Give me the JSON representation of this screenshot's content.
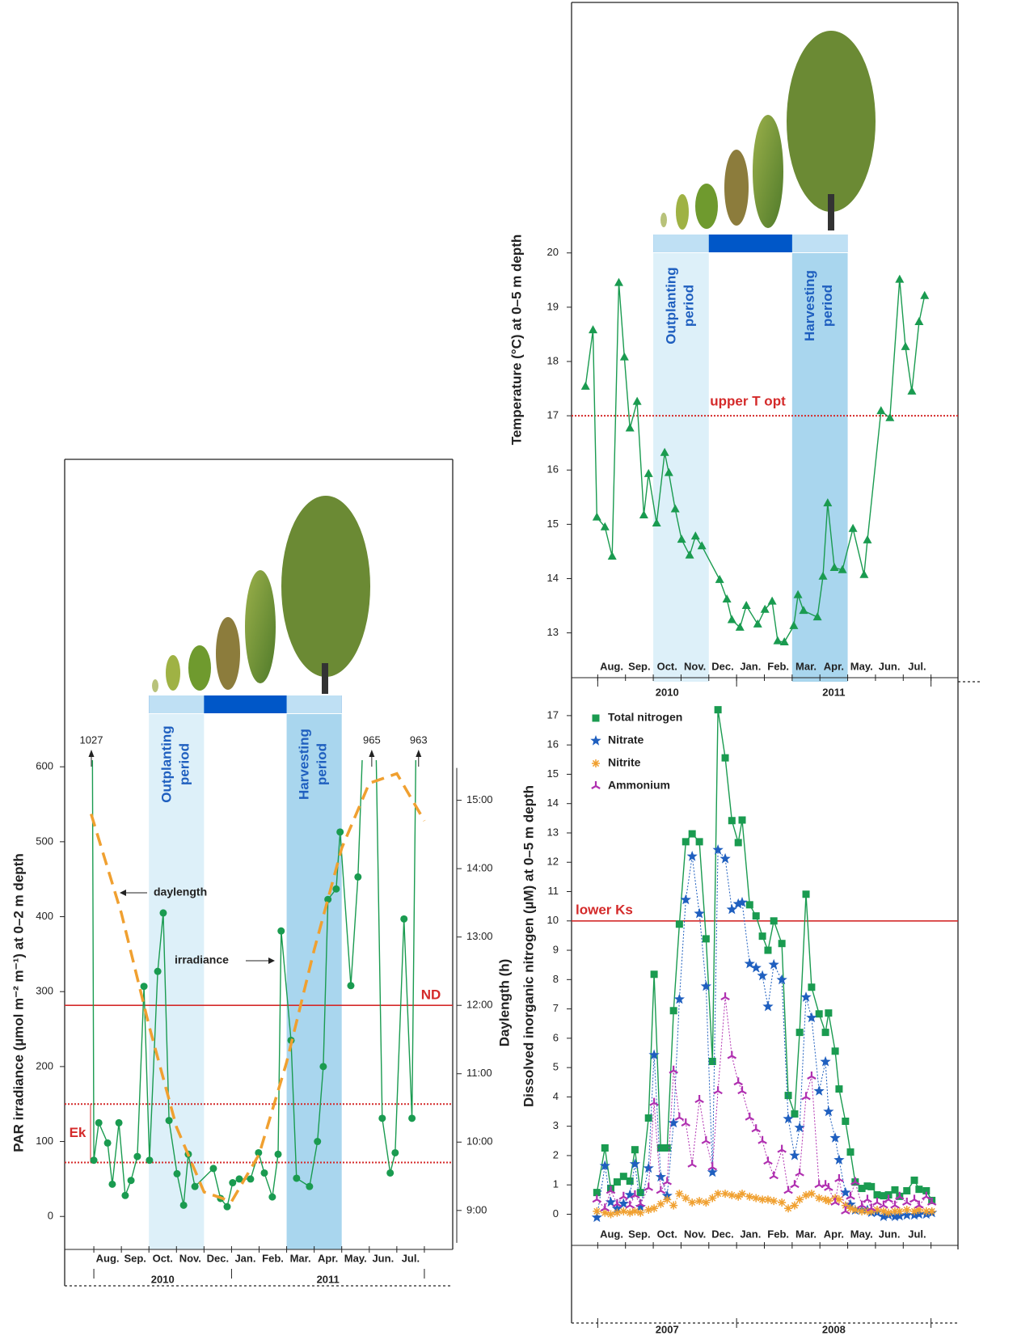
{
  "chart_data": [
    {
      "type": "line",
      "ylabel": "PAR irradiance (µmol m⁻² m⁻¹) at 0–2 m depth",
      "y2label": "Daylength (h)",
      "categories": [
        "Aug.",
        "Sep.",
        "Oct.",
        "Nov.",
        "Dec.",
        "Jan.",
        "Feb.",
        "Mar.",
        "Apr.",
        "May.",
        "Jun.",
        "Jul."
      ],
      "years": [
        "2010",
        "2011"
      ],
      "xlim": [
        -1,
        13
      ],
      "ylim": [
        -44,
        652
      ],
      "yticks": [
        0,
        100,
        200,
        300,
        400,
        500,
        600
      ],
      "y2lim": [
        8.43,
        16.06
      ],
      "y2ticks": [
        {
          "value": 9,
          "label": "9:00"
        },
        {
          "value": 10,
          "label": "10:00"
        },
        {
          "value": 11,
          "label": "11:00"
        },
        {
          "value": 12,
          "label": "12:00"
        },
        {
          "value": 13,
          "label": "13:00"
        },
        {
          "value": 14,
          "label": "14:00"
        },
        {
          "value": 15,
          "label": "15:00"
        }
      ],
      "periods": [
        [
          "Outplanting",
          "period"
        ],
        [
          "Harvesting",
          "period"
        ]
      ],
      "reference_color": "#d42a2a",
      "reference_lines": [
        {
          "label": "ND",
          "axis": "y2",
          "values": [
            12
          ],
          "style": "solid"
        },
        {
          "label": "Ek",
          "values": [
            72,
            150
          ],
          "style": "dotted"
        }
      ],
      "series": [
        {
          "name": "irradiance",
          "color": "#1a9b50",
          "marker": "circle",
          "x": [
            -0.09,
            0,
            0.18,
            0.5,
            0.67,
            0.91,
            1.14,
            1.35,
            1.58,
            1.82,
            2.02,
            2.32,
            2.52,
            2.73,
            3.02,
            3.26,
            3.43,
            3.67,
            4.34,
            4.6,
            4.84,
            5.04,
            5.28,
            5.69,
            5.98,
            6.19,
            6.48,
            6.69,
            6.8,
            7.16,
            7.36,
            7.83,
            8.12,
            8.33,
            8.5,
            8.8,
            8.94,
            9.33,
            9.59,
            10.09,
            10.47,
            10.76,
            10.94,
            11.26,
            11.55,
            11.79
          ],
          "values": [
            1027,
            75,
            125,
            98,
            43,
            125,
            28,
            48,
            80,
            307,
            75,
            327,
            405,
            128,
            57,
            15,
            83,
            40,
            64,
            24,
            13,
            45,
            50,
            50,
            85,
            58,
            26,
            83,
            381,
            235,
            51,
            40,
            100,
            200,
            423,
            437,
            513,
            308,
            453,
            965,
            131,
            58,
            85,
            397,
            131,
            963
          ]
        },
        {
          "name": "daylength",
          "color": "#f0a030",
          "axis": "y2",
          "dashed": true,
          "x": [
            -0.1,
            1,
            2,
            3,
            4,
            5,
            6,
            7,
            8,
            9,
            10,
            11,
            12
          ],
          "values": [
            14.8,
            13.35,
            11.71,
            10.22,
            9.27,
            9.13,
            9.82,
            11.17,
            12.81,
            14.3,
            15.25,
            15.39,
            14.7
          ]
        }
      ]
    },
    {
      "type": "line",
      "ylabel": "Temperature (°C) at 0–5 m depth",
      "categories": [
        "Aug.",
        "Sep.",
        "Oct.",
        "Nov.",
        "Dec.",
        "Jan.",
        "Feb.",
        "Mar.",
        "Apr.",
        "May.",
        "Jun.",
        "Jul."
      ],
      "years": [
        "2010",
        "2011"
      ],
      "xlim": [
        -1,
        13
      ],
      "ylim": [
        12.1,
        20.19
      ],
      "yticks": [
        13,
        14,
        15,
        16,
        17,
        18,
        19,
        20
      ],
      "periods": [
        [
          "Outplanting",
          "period"
        ],
        [
          "Harvesting",
          "period"
        ]
      ],
      "reference_color": "#d42a2a",
      "reference_lines": [
        {
          "label": "upper T opt",
          "values": [
            17
          ],
          "style": "dotted"
        }
      ],
      "series": [
        {
          "color": "#1a9b50",
          "marker": "triangle",
          "x": [
            -0.44,
            -0.17,
            -0.03,
            0.26,
            0.52,
            0.76,
            0.96,
            1.16,
            1.42,
            1.66,
            1.83,
            2.12,
            2.41,
            2.56,
            2.79,
            3.02,
            3.31,
            3.52,
            3.75,
            4.39,
            4.65,
            4.83,
            5.12,
            5.35,
            5.76,
            6.02,
            6.28,
            6.48,
            6.72,
            7.06,
            7.21,
            7.41,
            7.91,
            8.11,
            8.28,
            8.52,
            8.81,
            9.19,
            9.59,
            9.71,
            10.2,
            10.52,
            10.87,
            11.08,
            11.31,
            11.57,
            11.77
          ],
          "values": [
            17.54,
            18.58,
            15.13,
            14.95,
            14.41,
            19.45,
            18.08,
            16.77,
            17.26,
            15.17,
            15.93,
            15.02,
            16.32,
            15.95,
            15.28,
            14.72,
            14.43,
            14.78,
            14.6,
            13.98,
            13.62,
            13.24,
            13.1,
            13.5,
            13.16,
            13.43,
            13.58,
            12.85,
            12.83,
            13.13,
            13.7,
            13.41,
            13.29,
            14.04,
            15.39,
            14.2,
            14.16,
            14.92,
            14.07,
            14.71,
            17.09,
            16.96,
            19.51,
            18.27,
            17.45,
            18.73,
            19.21
          ]
        }
      ]
    },
    {
      "type": "line",
      "ylabel": "Dissolved inorganic nitrogen (µM) at 0–5 m depth",
      "categories": [
        "Aug.",
        "Sep.",
        "Oct.",
        "Nov.",
        "Dec.",
        "Jan.",
        "Feb.",
        "Mar.",
        "Apr.",
        "May.",
        "Jun.",
        "Jul."
      ],
      "years": [
        "2007",
        "2008"
      ],
      "xlim": [
        -1,
        13
      ],
      "ylim": [
        -1.2,
        18.1
      ],
      "yticks": [
        0,
        1,
        2,
        3,
        4,
        5,
        6,
        7,
        8,
        9,
        10,
        11,
        12,
        13,
        14,
        15,
        16,
        17
      ],
      "reference_color": "#d42a2a",
      "reference_lines": [
        {
          "label": "lower Ks",
          "values": [
            10
          ],
          "style": "solid"
        }
      ],
      "x": [
        -0.03,
        0.26,
        0.47,
        0.7,
        0.93,
        1.16,
        1.34,
        1.54,
        1.83,
        2.03,
        2.27,
        2.5,
        2.73,
        2.94,
        3.17,
        3.4,
        3.66,
        3.9,
        4.13,
        4.33,
        4.59,
        4.83,
        5.06,
        5.2,
        5.47,
        5.7,
        5.93,
        6.13,
        6.34,
        6.63,
        6.86,
        7.09,
        7.27,
        7.5,
        7.7,
        7.97,
        8.2,
        8.31,
        8.55,
        8.69,
        8.92,
        9.1,
        9.27,
        9.51,
        9.71,
        9.85,
        10.06,
        10.29,
        10.47,
        10.7,
        10.87,
        11.13,
        11.4,
        11.57,
        11.83,
        12.03
      ],
      "series": [
        {
          "name": "Total nitrogen",
          "color": "#1a9b50",
          "marker": "square",
          "values": [
            0.74,
            2.26,
            0.88,
            1.1,
            1.29,
            1.13,
            2.2,
            0.74,
            3.28,
            8.18,
            2.26,
            2.26,
            6.94,
            9.89,
            12.7,
            12.97,
            12.7,
            9.39,
            5.21,
            17.2,
            15.56,
            13.42,
            12.67,
            13.44,
            10.55,
            10.17,
            9.48,
            9.0,
            10.0,
            9.23,
            4.05,
            3.42,
            6.2,
            10.91,
            7.74,
            6.83,
            6.2,
            6.86,
            5.56,
            4.27,
            3.17,
            2.12,
            1.1,
            0.88,
            0.96,
            0.94,
            0.66,
            0.63,
            0.66,
            0.83,
            0.61,
            0.8,
            1.16,
            0.85,
            0.8,
            0.47
          ]
        },
        {
          "name": "Nitrate",
          "color": "#1f5fbf",
          "marker": "star",
          "dotted": true,
          "values": [
            -0.11,
            1.65,
            0.41,
            0.19,
            0.36,
            0.66,
            1.71,
            0.25,
            1.57,
            5.43,
            1.27,
            0.63,
            3.11,
            7.33,
            10.72,
            12.2,
            10.25,
            7.77,
            1.43,
            12.42,
            12.12,
            10.39,
            10.58,
            10.63,
            8.54,
            8.4,
            8.13,
            7.08,
            8.51,
            7.99,
            3.25,
            2.0,
            2.95,
            7.4,
            6.7,
            4.2,
            5.2,
            3.5,
            2.6,
            1.85,
            0.74,
            0.33,
            0.14,
            0.14,
            0.14,
            0.06,
            0.06,
            -0.08,
            -0.03,
            -0.08,
            -0.06,
            -0.03,
            -0.03,
            0,
            0,
            0.05
          ]
        },
        {
          "name": "Nitrite",
          "color": "#f0a030",
          "marker": "asterisk",
          "dotted": true,
          "values": [
            0.1,
            0.05,
            0,
            0.05,
            0.1,
            0.05,
            0.1,
            0.05,
            0.15,
            0.2,
            0.35,
            0.5,
            0.3,
            0.7,
            0.55,
            0.4,
            0.45,
            0.4,
            0.55,
            0.7,
            0.7,
            0.65,
            0.6,
            0.7,
            0.6,
            0.55,
            0.5,
            0.5,
            0.45,
            0.4,
            0.2,
            0.3,
            0.5,
            0.65,
            0.7,
            0.55,
            0.5,
            0.45,
            0.55,
            0.5,
            0.3,
            0.2,
            0.15,
            0.1,
            0.1,
            0.1,
            0.15,
            0.1,
            0.05,
            0.1,
            0.1,
            0.15,
            0.1,
            0.15,
            0.1,
            0.1
          ]
        },
        {
          "name": "Ammonium",
          "color": "#b030b0",
          "marker": "tri",
          "dotted": true,
          "values": [
            0.5,
            0.2,
            0.8,
            0.35,
            0.6,
            0.3,
            0.65,
            0.35,
            0.9,
            3.8,
            0.8,
            1.1,
            4.9,
            3.3,
            3.1,
            1.7,
            3.9,
            2.5,
            1.6,
            4.2,
            7.4,
            5.4,
            4.5,
            4.2,
            3.3,
            2.9,
            2.5,
            1.8,
            1.3,
            2.2,
            0.8,
            1.0,
            1.4,
            4.0,
            4.7,
            1.0,
            1.0,
            0.9,
            0.4,
            1.2,
            0.1,
            0.6,
            1.1,
            0.3,
            0.5,
            0.2,
            0.4,
            0.3,
            0.5,
            0.3,
            0.6,
            0.4,
            0.5,
            0.3,
            0.6,
            0.4
          ]
        }
      ]
    }
  ]
}
